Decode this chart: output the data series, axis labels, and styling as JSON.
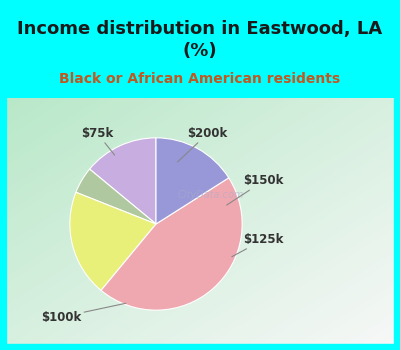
{
  "title": "Income distribution in Eastwood, LA\n(%)",
  "subtitle": "Black or African American residents",
  "title_fontsize": 13,
  "subtitle_fontsize": 10,
  "slices": [
    {
      "label": "$200k",
      "value": 14,
      "color": "#c8aee0"
    },
    {
      "label": "$150k",
      "value": 5,
      "color": "#b0c8a0"
    },
    {
      "label": "$125k",
      "value": 20,
      "color": "#e8f07a"
    },
    {
      "label": "$100k",
      "value": 45,
      "color": "#f0a8b0"
    },
    {
      "label": "$75k",
      "value": 16,
      "color": "#9898d8"
    }
  ],
  "bg_color_top": "#00FFFF",
  "chart_bg_left": "#b8e8c8",
  "chart_bg_right": "#e0f0f8",
  "label_fontsize": 8.5,
  "startangle": 90,
  "label_color": "#333333"
}
